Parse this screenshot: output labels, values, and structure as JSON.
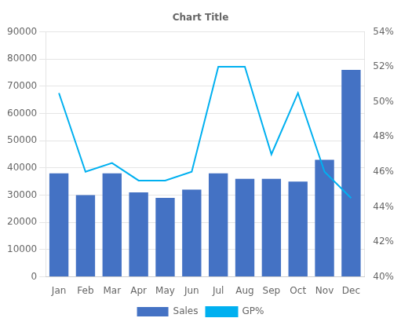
{
  "chart_data": {
    "type": "bar",
    "title": "Chart Title",
    "categories": [
      "Jan",
      "Feb",
      "Mar",
      "Apr",
      "May",
      "Jun",
      "Jul",
      "Aug",
      "Sep",
      "Oct",
      "Nov",
      "Dec"
    ],
    "series": [
      {
        "name": "Sales",
        "type": "bar",
        "color": "#4472C4",
        "values": [
          38000,
          30000,
          38000,
          31000,
          29000,
          32000,
          38000,
          36000,
          36000,
          35000,
          43000,
          76000
        ]
      },
      {
        "name": "GP%",
        "type": "line",
        "color": "#00B0F0",
        "axis": "y2",
        "marker": "none",
        "values": [
          50.5,
          46.0,
          46.5,
          45.5,
          45.5,
          46.0,
          52.0,
          52.0,
          47.0,
          50.5,
          46.0,
          44.5
        ]
      }
    ],
    "ylim": [
      0,
      90000
    ],
    "yticks": [
      0,
      10000,
      20000,
      30000,
      40000,
      50000,
      60000,
      70000,
      80000,
      90000
    ],
    "y2lim": [
      40,
      54
    ],
    "y2ticks": [
      {
        "value": 40,
        "label": "40%"
      },
      {
        "value": 42,
        "label": "42%"
      },
      {
        "value": 44,
        "label": "44%"
      },
      {
        "value": 46,
        "label": "46%"
      },
      {
        "value": 48,
        "label": "48%"
      },
      {
        "value": 50,
        "label": "50%"
      },
      {
        "value": 52,
        "label": "52%"
      },
      {
        "value": 54,
        "label": "54%"
      }
    ],
    "grid": true,
    "legend": "bottom"
  }
}
